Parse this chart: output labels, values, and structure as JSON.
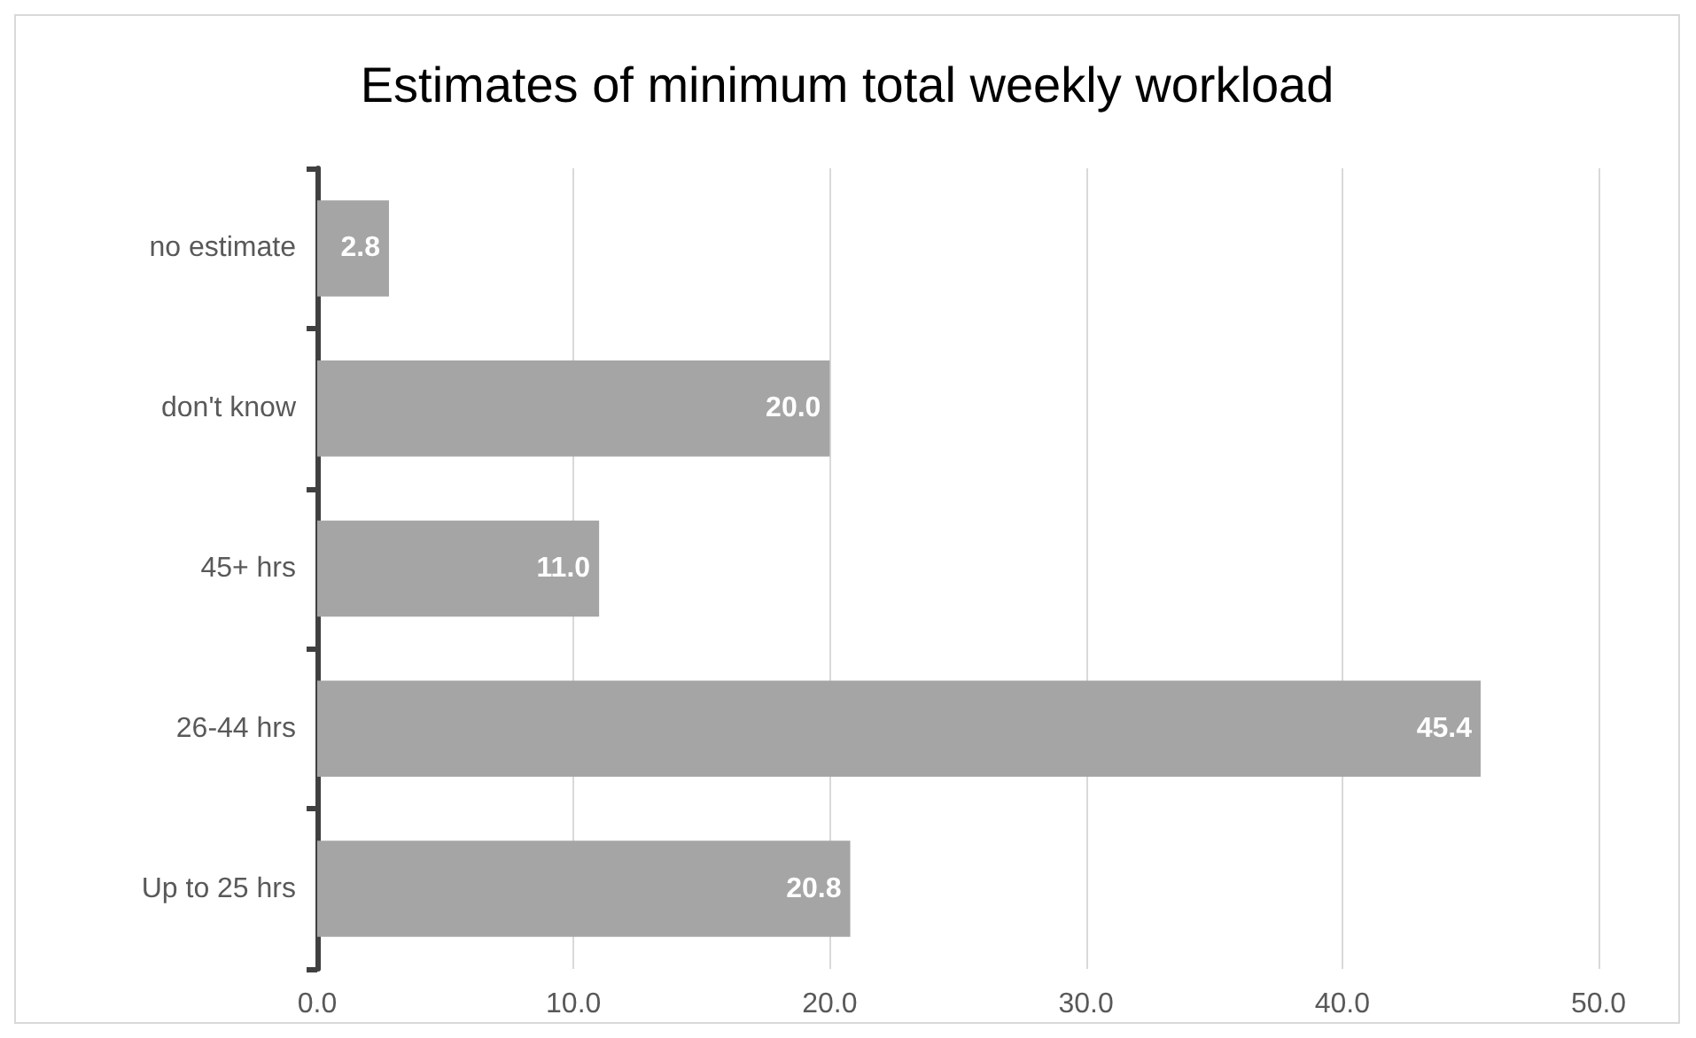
{
  "chart_data": {
    "type": "bar",
    "orientation": "horizontal",
    "title": "Estimates of minimum total weekly workload",
    "categories": [
      "no estimate",
      "don't know",
      "45+ hrs",
      "26-44 hrs",
      "Up to 25 hrs"
    ],
    "values": [
      2.8,
      20.0,
      11.0,
      45.4,
      20.8
    ],
    "value_labels": [
      "2.8",
      "20.0",
      "11.0",
      "45.4",
      "20.8"
    ],
    "color": "#a5a5a5",
    "xlim": [
      0,
      50
    ],
    "xticks": [
      {
        "value": 0,
        "label": "0.0"
      },
      {
        "value": 10,
        "label": "10.0"
      },
      {
        "value": 20,
        "label": "20.0"
      },
      {
        "value": 30,
        "label": "30.0"
      },
      {
        "value": 40,
        "label": "40.0"
      },
      {
        "value": 50,
        "label": "50.0"
      }
    ],
    "grid": "x"
  }
}
